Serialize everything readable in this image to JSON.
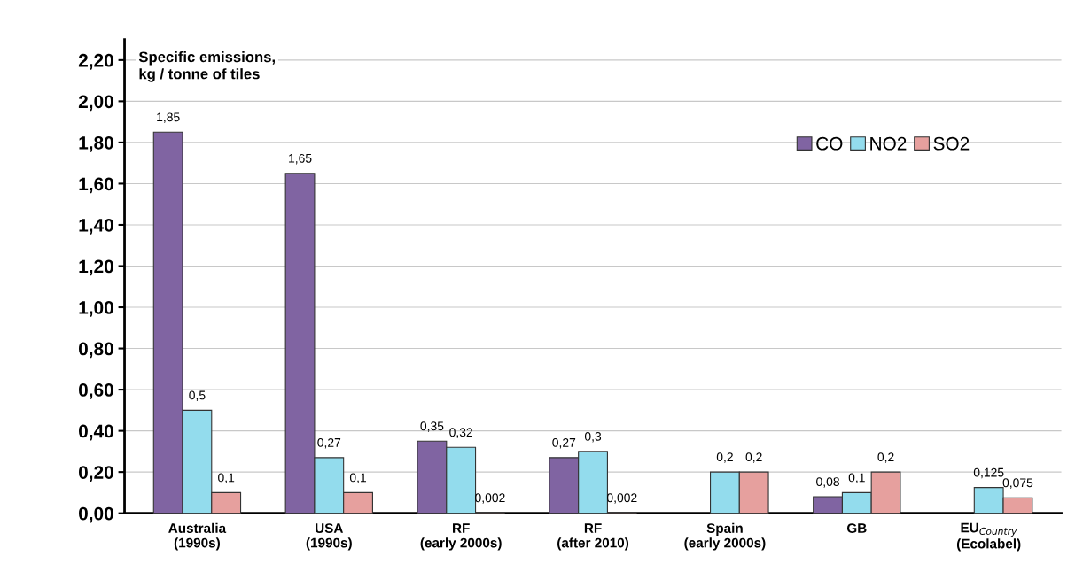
{
  "chart_data": {
    "type": "bar",
    "ylabel": "Specific emissions,\nkg / tonne of tiles",
    "categories": [
      "Australia\n(1990s)",
      "USA\n(1990s)",
      "RF\n(early 2000s)",
      "RF\n(after 2010)",
      "Spain\n(early 2000s)",
      "GB",
      "EU$_{Country}$\n(Ecolabel)"
    ],
    "series": [
      {
        "name": "CO",
        "color": "#8064a2",
        "values": [
          1.85,
          1.65,
          0.35,
          0.27,
          null,
          0.08,
          null
        ],
        "value_labels": [
          "1,85",
          "1,65",
          "0,35",
          "0,27",
          null,
          "0,08",
          null
        ]
      },
      {
        "name": "NO2",
        "color": "#93dced",
        "values": [
          0.5,
          0.27,
          0.32,
          0.3,
          0.2,
          0.1,
          0.125
        ],
        "value_labels": [
          "0,5",
          "0,27",
          "0,32",
          "0,3",
          "0,2",
          "0,1",
          "0,125"
        ]
      },
      {
        "name": "SO2",
        "color": "#e6a09e",
        "values": [
          0.1,
          0.1,
          0.002,
          0.002,
          0.2,
          0.2,
          0.075
        ],
        "value_labels": [
          "0,1",
          "0,1",
          "0,002",
          "0,002",
          "0,2",
          "0,2",
          "0,075"
        ]
      }
    ],
    "ylim": [
      0,
      2.3
    ],
    "yticks": [
      {
        "value": 0,
        "label": "0,00"
      },
      {
        "value": 0.2,
        "label": "0,20"
      },
      {
        "value": 0.4,
        "label": "0,40"
      },
      {
        "value": 0.6,
        "label": "0,60"
      },
      {
        "value": 0.8,
        "label": "0,80"
      },
      {
        "value": 1.0,
        "label": "1,00"
      },
      {
        "value": 1.2,
        "label": "1,20"
      },
      {
        "value": 1.4,
        "label": "1,40"
      },
      {
        "value": 1.6,
        "label": "1,60"
      },
      {
        "value": 1.8,
        "label": "1,80"
      },
      {
        "value": 2.0,
        "label": "2,00"
      },
      {
        "value": 2.2,
        "label": "2,20"
      }
    ],
    "grid": "y",
    "legend": "top right"
  }
}
